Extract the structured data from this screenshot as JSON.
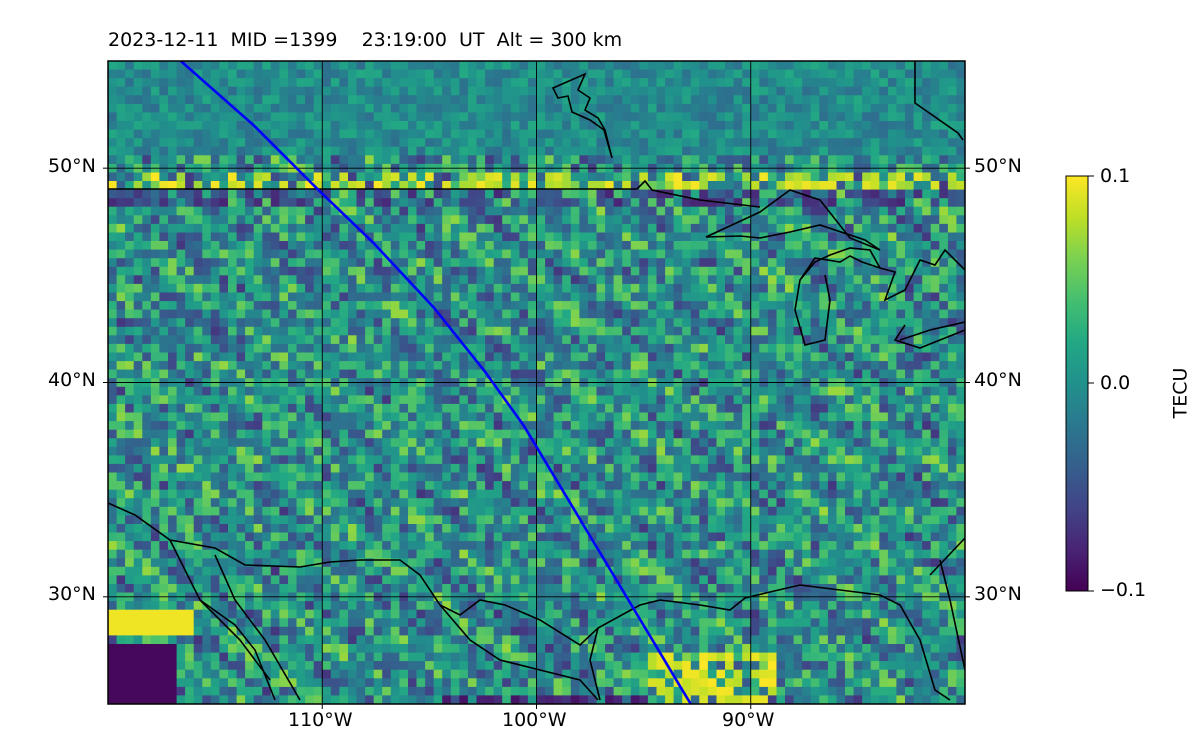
{
  "title": "2023-12-11  MID =1399    23:19:00  UT  Alt = 300 km",
  "chart_data": {
    "type": "heatmap",
    "title": "2023-12-11  MID =1399    23:19:00  UT  Alt = 300 km",
    "quantity": "TEC perturbation",
    "colormap": "viridis",
    "lon_range": [
      -120,
      -80
    ],
    "lat_range": [
      25,
      55
    ],
    "lat_ticks": [
      {
        "value": 30,
        "label": "30°N"
      },
      {
        "value": 40,
        "label": "40°N"
      },
      {
        "value": 50,
        "label": "50°N"
      }
    ],
    "lon_ticks": [
      {
        "value": -110,
        "label": "110°W"
      },
      {
        "value": -100,
        "label": "100°W"
      },
      {
        "value": -90,
        "label": "90°W"
      }
    ],
    "grid": true,
    "colorbar": {
      "label": "TECU",
      "min": -0.1,
      "max": 0.1,
      "ticks": [
        {
          "value": 0.1,
          "label": "0.1"
        },
        {
          "value": 0.0,
          "label": "0.0"
        },
        {
          "value": -0.1,
          "label": "−0.1"
        }
      ]
    },
    "satellite_track": {
      "color": "#0000ff",
      "points": [
        [
          -116.6,
          55
        ],
        [
          -113.2,
          52
        ],
        [
          -110.2,
          49
        ],
        [
          -107.6,
          46.5
        ],
        [
          -104.8,
          43.5
        ],
        [
          -102.4,
          40.5
        ],
        [
          -100.6,
          38
        ],
        [
          -99.1,
          35.5
        ],
        [
          -97.6,
          33
        ],
        [
          -96.1,
          30.5
        ],
        [
          -94.6,
          28
        ],
        [
          -93.1,
          25.5
        ],
        [
          -92.8,
          25
        ]
      ]
    }
  }
}
